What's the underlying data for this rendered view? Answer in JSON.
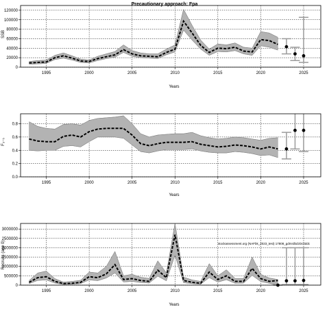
{
  "chart_data": {
    "title": "Precautionary approach: Fpa",
    "watermark": "stockassessment.org (NAFbk_2023_test) 17808_gdmrdbdzDc0ddc",
    "panels": [
      {
        "type": "line",
        "ylabel": "SSB",
        "xlabel": "Years",
        "xlim": [
          1992,
          2027
        ],
        "ylim": [
          0,
          130000
        ],
        "xticks": [
          1995,
          2000,
          2005,
          2010,
          2015,
          2020,
          2025
        ],
        "yticks": [
          0,
          20000,
          40000,
          60000,
          80000,
          100000,
          120000
        ],
        "grid": true,
        "x": [
          1993,
          1994,
          1995,
          1996,
          1997,
          1998,
          1999,
          2000,
          2001,
          2002,
          2003,
          2004,
          2005,
          2006,
          2007,
          2008,
          2009,
          2010,
          2011,
          2012,
          2013,
          2014,
          2015,
          2016,
          2017,
          2018,
          2019,
          2020,
          2021,
          2022
        ],
        "estimate": [
          9000,
          10000,
          11000,
          20000,
          24000,
          19000,
          13000,
          12000,
          18000,
          22000,
          26000,
          37000,
          28000,
          24000,
          23000,
          22000,
          31000,
          38000,
          97000,
          72000,
          46000,
          31000,
          40000,
          39000,
          42000,
          34000,
          32000,
          58000,
          56000,
          48000
        ],
        "lower": [
          6000,
          7000,
          8000,
          16000,
          19000,
          15000,
          10000,
          9000,
          14000,
          18000,
          21000,
          31000,
          23000,
          20000,
          19000,
          18000,
          26000,
          32000,
          78000,
          57000,
          38000,
          25000,
          33000,
          32000,
          35000,
          28000,
          25000,
          45000,
          42000,
          36000
        ],
        "upper": [
          12000,
          14000,
          15000,
          25000,
          30000,
          24000,
          17000,
          15000,
          23000,
          28000,
          33000,
          47000,
          35000,
          30000,
          28000,
          28000,
          38000,
          47000,
          122000,
          88000,
          57000,
          38000,
          49000,
          47000,
          51000,
          42000,
          40000,
          75000,
          72000,
          63000
        ],
        "forecast": [
          {
            "x": 2023,
            "value": 43000,
            "low": 28000,
            "high": 60000
          },
          {
            "x": 2024,
            "value": 28000,
            "low": 14000,
            "high": 42000
          },
          {
            "x": 2025,
            "value": 24000,
            "low": 10000,
            "high": 105000
          }
        ]
      },
      {
        "type": "line",
        "ylabel": "F₃₋₅",
        "xlabel": "Years",
        "xlim": [
          1992,
          2027
        ],
        "ylim": [
          0,
          0.95
        ],
        "xticks": [
          1995,
          2000,
          2005,
          2010,
          2015,
          2020,
          2025
        ],
        "yticks": [
          0.0,
          0.2,
          0.4,
          0.6,
          0.8
        ],
        "ytick_labels": [
          "0.0",
          "0.2",
          "0.4",
          "0.6",
          "0.8"
        ],
        "grid": true,
        "x": [
          1993,
          1994,
          1995,
          1996,
          1997,
          1998,
          1999,
          2000,
          2001,
          2002,
          2003,
          2004,
          2005,
          2006,
          2007,
          2008,
          2009,
          2010,
          2011,
          2012,
          2013,
          2014,
          2015,
          2016,
          2017,
          2018,
          2019,
          2020,
          2021,
          2022
        ],
        "estimate": [
          0.57,
          0.54,
          0.53,
          0.53,
          0.61,
          0.63,
          0.6,
          0.68,
          0.72,
          0.73,
          0.73,
          0.73,
          0.63,
          0.5,
          0.47,
          0.5,
          0.52,
          0.52,
          0.52,
          0.53,
          0.49,
          0.47,
          0.45,
          0.46,
          0.48,
          0.47,
          0.45,
          0.42,
          0.45,
          0.42
        ],
        "lower": [
          0.4,
          0.39,
          0.4,
          0.4,
          0.46,
          0.47,
          0.45,
          0.53,
          0.6,
          0.6,
          0.6,
          0.58,
          0.48,
          0.38,
          0.36,
          0.39,
          0.41,
          0.41,
          0.41,
          0.42,
          0.39,
          0.37,
          0.36,
          0.36,
          0.38,
          0.37,
          0.35,
          0.32,
          0.33,
          0.29
        ],
        "upper": [
          0.83,
          0.76,
          0.73,
          0.72,
          0.79,
          0.8,
          0.78,
          0.85,
          0.88,
          0.89,
          0.9,
          0.92,
          0.8,
          0.65,
          0.6,
          0.63,
          0.64,
          0.65,
          0.65,
          0.67,
          0.62,
          0.59,
          0.57,
          0.58,
          0.6,
          0.59,
          0.57,
          0.55,
          0.58,
          0.59
        ],
        "forecast": [
          {
            "x": 2023,
            "value": 0.42,
            "low": 0.27,
            "high": 0.67
          },
          {
            "x": 2024,
            "value": 0.7,
            "low": 0.42,
            "high": 1.2
          },
          {
            "x": 2025,
            "value": 0.7,
            "low": 0.38,
            "high": 1.2
          }
        ]
      },
      {
        "type": "line",
        "ylabel": "Recruits (age 0)",
        "xlabel": "Years",
        "xlim": [
          1992,
          2027
        ],
        "ylim": [
          0,
          3300000
        ],
        "xticks": [
          1995,
          2000,
          2005,
          2010,
          2015,
          2020,
          2025
        ],
        "yticks": [
          0,
          500000,
          1000000,
          1500000,
          2000000,
          2500000,
          3000000
        ],
        "ytick_labels": [
          "0",
          "500000",
          "1000000",
          "1500000",
          "2000000",
          "2500000",
          "3000000"
        ],
        "grid": true,
        "x": [
          1993,
          1994,
          1995,
          1996,
          1997,
          1998,
          1999,
          2000,
          2001,
          2002,
          2003,
          2004,
          2005,
          2006,
          2007,
          2008,
          2009,
          2010,
          2011,
          2012,
          2013,
          2014,
          2015,
          2016,
          2017,
          2018,
          2019,
          2020,
          2021,
          2022
        ],
        "estimate": [
          150000,
          400000,
          450000,
          200000,
          80000,
          100000,
          150000,
          450000,
          400000,
          600000,
          1100000,
          300000,
          350000,
          250000,
          200000,
          800000,
          400000,
          2700000,
          250000,
          150000,
          100000,
          700000,
          300000,
          500000,
          200000,
          200000,
          900000,
          350000,
          200000,
          250000
        ],
        "lower": [
          80000,
          250000,
          280000,
          110000,
          40000,
          50000,
          80000,
          280000,
          240000,
          380000,
          650000,
          170000,
          200000,
          140000,
          110000,
          480000,
          230000,
          1600000,
          130000,
          80000,
          50000,
          400000,
          160000,
          290000,
          100000,
          110000,
          520000,
          190000,
          100000,
          0
        ],
        "upper": [
          250000,
          650000,
          750000,
          350000,
          160000,
          200000,
          260000,
          700000,
          650000,
          1000000,
          1800000,
          500000,
          580000,
          420000,
          360000,
          1300000,
          650000,
          3800000,
          430000,
          280000,
          200000,
          1150000,
          500000,
          820000,
          360000,
          360000,
          1500000,
          580000,
          380000,
          300000
        ],
        "forecast": [
          {
            "x": 2022,
            "value": 0,
            "low": 0,
            "high": 0
          },
          {
            "x": 2023,
            "value": 230000,
            "low": 30000,
            "high": 2000000
          },
          {
            "x": 2024,
            "value": 230000,
            "low": 30000,
            "high": 2000000
          },
          {
            "x": 2025,
            "value": 250000,
            "low": 30000,
            "high": 2000000
          }
        ]
      }
    ]
  }
}
